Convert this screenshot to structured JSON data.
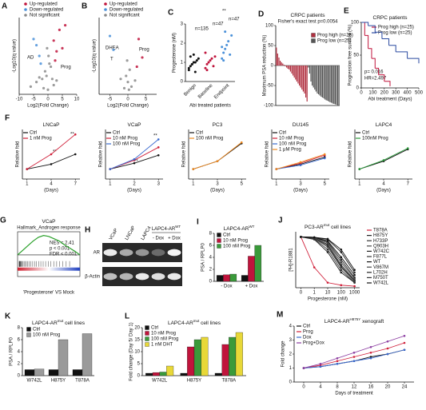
{
  "chart_data": [
    {
      "letter": "A",
      "type": "scatter",
      "ylabel": "-Log10(q value)",
      "xlabel": "Log2(Fold Change)",
      "xlim": [
        -10,
        10
      ],
      "xticks": [
        -10,
        -5,
        0,
        5,
        10
      ],
      "ylim": [
        0,
        5
      ],
      "series": [
        {
          "name": "Up-regulated",
          "color": "#c0143c",
          "x": [
            2,
            3,
            4,
            5,
            6,
            2.5
          ],
          "values": [
            3.5,
            2.8,
            4.2,
            3.0,
            4.5,
            2.2
          ]
        },
        {
          "name": "Down-regulated",
          "color": "#4a90d9",
          "x": [
            -3,
            -4,
            -2.5,
            -5
          ],
          "values": [
            2.5,
            3.2,
            2.0,
            3.6
          ]
        },
        {
          "name": "Not significant",
          "color": "#8a8a8a",
          "x": [
            -6,
            -4,
            -2,
            -1,
            -0.5,
            0,
            0.5,
            1,
            1.5,
            2,
            -1.5,
            0.2,
            -0.3,
            3,
            -3
          ],
          "values": [
            0.5,
            0.8,
            1,
            1.5,
            1.2,
            0.3,
            2,
            1.8,
            1,
            0.6,
            0.4,
            2.5,
            3,
            0.9,
            1.1
          ]
        }
      ],
      "annotations": [
        "AD",
        "Prog"
      ]
    },
    {
      "letter": "B",
      "type": "scatter",
      "ylabel": "-Log10(q value)",
      "xlabel": "Log2(Fold Change)",
      "xlim": [
        -8,
        8
      ],
      "xticks": [
        -5,
        0,
        5
      ],
      "ylim": [
        0,
        5
      ],
      "series": [
        {
          "name": "Up-regulated",
          "color": "#c0143c",
          "x": [
            3,
            4,
            2.5
          ],
          "values": [
            3.6,
            2.4,
            1.8
          ]
        },
        {
          "name": "Down-regulated",
          "color": "#4a90d9",
          "x": [
            -5,
            -4
          ],
          "values": [
            3.8,
            2.9
          ]
        },
        {
          "name": "Not significant",
          "color": "#8a8a8a",
          "x": [
            -1,
            -0.5,
            0,
            0.5,
            1,
            -2,
            2,
            -0.2,
            0.3
          ],
          "values": [
            0.4,
            1.2,
            0.8,
            1.6,
            0.5,
            1.0,
            0.9,
            2.2,
            0.3
          ]
        }
      ],
      "annotations": [
        "DHEA",
        "T",
        "Prog"
      ]
    },
    {
      "letter": "C",
      "type": "strip",
      "ylabel": "Progesterone (nM)",
      "xlabel": "Abi treated patients",
      "categories": [
        "Benign",
        "Baseline",
        "Endpoint"
      ],
      "colors": [
        "#111111",
        "#c0143c",
        "#4a90d9"
      ],
      "ylim": [
        0,
        3
      ],
      "yticks": [
        0,
        1,
        2,
        3
      ],
      "groups": [
        [
          0.6,
          0.8,
          0.9,
          1.0,
          1.0,
          1.1,
          1.2,
          0.7,
          1.3,
          0.9,
          1.4,
          0.5
        ],
        [
          0.7,
          0.9,
          1.0,
          1.1,
          1.2,
          0.8,
          1.3,
          1.5,
          0.6
        ],
        [
          1.2,
          1.5,
          1.7,
          1.9,
          2.1,
          1.4,
          2.4,
          1.8,
          1.1,
          2.6
        ]
      ],
      "annotations": [
        "n=135",
        "n=47",
        "n=47",
        "**"
      ]
    },
    {
      "letter": "D",
      "type": "bar",
      "title": "CRPC patients",
      "subtitle": "Fisher's exact test p=0.0054",
      "ylabel": "Maximum PSA reduction (%)",
      "ylim": [
        -100,
        100
      ],
      "yticks": [
        100,
        50,
        0,
        -50,
        -100
      ],
      "series": [
        {
          "name": "Prog high (n=25)",
          "color": "#b03040",
          "values": [
            45,
            30,
            20,
            12,
            8,
            5,
            2,
            -2,
            -5,
            -8,
            -10,
            -15,
            -20,
            -25,
            -30,
            -35,
            -40,
            -45,
            -50,
            -55,
            -60,
            -65,
            -70,
            -80,
            -90
          ]
        },
        {
          "name": "Prog low (n=25)",
          "color": "#555555",
          "values": [
            -5,
            -20,
            -40,
            -50,
            -55,
            -60,
            -65,
            -70,
            -72,
            -75,
            -78,
            -80,
            -82,
            -85,
            -87,
            -88,
            -90,
            -92,
            -93,
            -95,
            -96,
            -97,
            -98,
            -99,
            -100
          ]
        }
      ]
    },
    {
      "letter": "E",
      "type": "step",
      "title": "CRPC patients",
      "ylabel": "Progression free survival (%)",
      "xlabel": "Abi treatment (Days)",
      "xlim": [
        0,
        500
      ],
      "xticks": [
        0,
        100,
        200,
        300,
        400,
        500
      ],
      "ylim": [
        0,
        100
      ],
      "yticks": [
        0,
        50,
        100
      ],
      "series": [
        {
          "name": "Prog high (n=25)",
          "color": "#c0143c",
          "x": [
            0,
            30,
            60,
            90,
            120,
            150,
            200,
            250
          ],
          "values": [
            100,
            80,
            60,
            45,
            30,
            20,
            10,
            5
          ]
        },
        {
          "name": "Prog low (n=25)",
          "color": "#2a4aa0",
          "x": [
            0,
            60,
            120,
            180,
            240,
            300,
            400,
            500
          ],
          "values": [
            100,
            95,
            85,
            75,
            65,
            55,
            45,
            40
          ]
        }
      ],
      "annotations": [
        "p= 0.016",
        "HR=2.497"
      ]
    },
    {
      "letter": "F",
      "type": "line",
      "title": "LNCaP",
      "ylabel": "Relative fold",
      "xlabel": "(Days)",
      "categories": [
        "1",
        "4",
        "7"
      ],
      "ylim": [
        0,
        5
      ],
      "series": [
        {
          "name": "Ctrl",
          "color": "#111111",
          "values": [
            1,
            1.5,
            2.5
          ]
        },
        {
          "name": "1 nM Prog",
          "color": "#d0203a",
          "values": [
            1,
            2.5,
            4.5
          ]
        }
      ],
      "annotations": [
        "**",
        "**"
      ]
    },
    {
      "type": "line",
      "title": "VCaP",
      "ylabel": "Relative fold",
      "xlabel": "(Days)",
      "categories": [
        "1",
        "2",
        "3"
      ],
      "ylim": [
        0,
        5
      ],
      "series": [
        {
          "name": "Ctrl",
          "color": "#111111",
          "values": [
            1,
            1.6,
            2.4
          ]
        },
        {
          "name": "10 nM Prog",
          "color": "#d0203a",
          "values": [
            1,
            1.9,
            3.2
          ]
        },
        {
          "name": "100 nM Prog",
          "color": "#3a6ad0",
          "values": [
            1,
            2.0,
            4.0
          ]
        }
      ],
      "annotations": [
        "**",
        "**"
      ]
    },
    {
      "type": "line",
      "title": "PC3",
      "ylabel": "Relative fold",
      "xlabel": "(Days)",
      "categories": [
        "1",
        "3",
        "5"
      ],
      "ylim": [
        0,
        5
      ],
      "series": [
        {
          "name": "Ctrl",
          "color": "#111111",
          "values": [
            1,
            1.8,
            3.6
          ]
        },
        {
          "name": "100 nM Prog",
          "color": "#f08a20",
          "values": [
            1,
            1.8,
            3.7
          ]
        }
      ]
    },
    {
      "type": "line",
      "title": "DU145",
      "ylabel": "Relative fold",
      "xlabel": "(Days)",
      "categories": [
        "1",
        "3",
        "5"
      ],
      "ylim": [
        0,
        5
      ],
      "series": [
        {
          "name": "Ctrl",
          "color": "#111111",
          "values": [
            1,
            1.5,
            2.2
          ]
        },
        {
          "name": "10 nM Prog",
          "color": "#d0203a",
          "values": [
            1,
            1.6,
            2.4
          ]
        },
        {
          "name": "100 nM Prog",
          "color": "#3a6ad0",
          "values": [
            1,
            1.4,
            2.1
          ]
        },
        {
          "name": "1 μM Prog",
          "color": "#f08a20",
          "values": [
            1,
            1.7,
            2.5
          ]
        }
      ]
    },
    {
      "type": "line",
      "title": "LAPC4",
      "ylabel": "Relative fold",
      "xlabel": "(Days)",
      "categories": [
        "1",
        "4",
        "7"
      ],
      "ylim": [
        0,
        5
      ],
      "series": [
        {
          "name": "Ctrl",
          "color": "#111111",
          "values": [
            1,
            1.8,
            3.0
          ]
        },
        {
          "name": "100nM Prog",
          "color": "#2a9a3a",
          "values": [
            1,
            1.9,
            3.1
          ]
        }
      ]
    },
    {
      "letter": "G",
      "type": "gsea",
      "title": "VCaP",
      "subtitle": "Hallmark_Androgen response",
      "xlabel": "'Progesterone' VS Mock",
      "ylim": [
        -0.1,
        0.5
      ],
      "values": [
        0,
        0.1,
        0.2,
        0.3,
        0.38,
        0.42,
        0.4,
        0.35,
        0.3,
        0.22,
        0.15,
        0.08,
        0
      ],
      "annotations": [
        "NES = 2.41",
        "p < 0.001",
        "FDR < 0.001"
      ]
    },
    {
      "letter": "H",
      "type": "blot",
      "lanes": [
        "VCaP",
        "LNCaP",
        "LAPC4",
        "- Dox",
        "+ Dox"
      ],
      "group": "LAPC4-AR",
      "group_sup": "WT",
      "bands": [
        "AR",
        "β-Actin"
      ]
    },
    {
      "letter": "I",
      "type": "groupbar",
      "title": "LAPC4-AR",
      "title_sup": "WT",
      "ylabel": "PSA / RPLP0",
      "categories": [
        "- Dox",
        "+ Dox"
      ],
      "ylim": [
        0,
        8
      ],
      "yticks": [
        0,
        2,
        4,
        6,
        8
      ],
      "series": [
        {
          "name": "Ctrl",
          "color": "#111111",
          "values": [
            1,
            1
          ]
        },
        {
          "name": "10 nM Prog",
          "color": "#c0143c",
          "values": [
            1.1,
            4.2
          ]
        },
        {
          "name": "100 nM Prog",
          "color": "#3a9a3a",
          "values": [
            1.2,
            6.0
          ]
        }
      ]
    },
    {
      "letter": "J",
      "type": "line",
      "title": "PC3-AR",
      "title_sup": "mut",
      "title_end": " cell lines",
      "ylabel": "[³H]-R1881",
      "xlabel": "Progesterone (nM)",
      "categories": [
        "0",
        "1",
        "10",
        "100",
        "1000"
      ],
      "ylim": [
        0,
        110
      ],
      "series": [
        {
          "name": "T878A",
          "color": "#d0203a",
          "values": [
            100,
            40,
            10,
            5,
            3
          ]
        },
        {
          "name": "H875Y",
          "color": "#222222",
          "values": [
            100,
            95,
            70,
            30,
            10
          ]
        },
        {
          "name": "H733P",
          "color": "#333333",
          "values": [
            100,
            98,
            85,
            45,
            15
          ]
        },
        {
          "name": "Q903H",
          "color": "#444444",
          "values": [
            100,
            97,
            80,
            40,
            12
          ]
        },
        {
          "name": "W742C",
          "color": "#222222",
          "values": [
            100,
            99,
            90,
            55,
            20
          ]
        },
        {
          "name": "F877L",
          "color": "#333333",
          "values": [
            100,
            96,
            75,
            35,
            10
          ]
        },
        {
          "name": "WT",
          "color": "#111111",
          "values": [
            100,
            99,
            92,
            60,
            25
          ]
        },
        {
          "name": "V867M",
          "color": "#444444",
          "values": [
            100,
            98,
            88,
            50,
            18
          ]
        },
        {
          "name": "L702H",
          "color": "#222222",
          "values": [
            100,
            99,
            95,
            70,
            30
          ]
        },
        {
          "name": "M750T",
          "color": "#333333",
          "values": [
            100,
            97,
            83,
            42,
            14
          ]
        },
        {
          "name": "W742L",
          "color": "#111111",
          "values": [
            100,
            99,
            96,
            75,
            35
          ]
        }
      ]
    },
    {
      "letter": "K",
      "type": "groupbar",
      "title": "LAPC4-AR",
      "title_sup": "mut",
      "title_end": " cell lines",
      "ylabel": "PSA / RPLP0",
      "categories": [
        "W742L",
        "H875Y",
        "T878A"
      ],
      "ylim": [
        0,
        8
      ],
      "yticks": [
        0,
        2,
        4,
        6,
        8
      ],
      "series": [
        {
          "name": "Ctrl",
          "color": "#111111",
          "values": [
            1,
            1,
            1
          ]
        },
        {
          "name": "100 nM Prog",
          "color": "#9a9a9a",
          "values": [
            1.1,
            6.0,
            7.0
          ]
        }
      ]
    },
    {
      "letter": "L",
      "type": "groupbar",
      "title": "LAPC4-AR",
      "title_sup": "mut",
      "title_end": " cell lines",
      "ylabel": "Fold change (Day 5/ Day 1)",
      "categories": [
        "W742L",
        "H875Y",
        "T878A"
      ],
      "ylim": [
        0,
        20
      ],
      "yticks": [
        0,
        5,
        10,
        15,
        20
      ],
      "series": [
        {
          "name": "Ctrl",
          "color": "#111111",
          "values": [
            1,
            1,
            1
          ]
        },
        {
          "name": "10 nM Prog",
          "color": "#c0143c",
          "values": [
            1.3,
            12,
            13
          ]
        },
        {
          "name": "100 nM Prog",
          "color": "#3a9a3a",
          "values": [
            1.5,
            15,
            16
          ]
        },
        {
          "name": "1 nM DHT",
          "color": "#e8d838",
          "values": [
            4,
            16,
            18
          ]
        }
      ]
    },
    {
      "letter": "M",
      "type": "line",
      "title": "LAPC4-AR",
      "title_sup": "H875Y",
      "title_end": " xenograft",
      "ylabel": "Fold change",
      "xlabel": "Days of treatment",
      "categories": [
        "0",
        "4",
        "8",
        "12",
        "16",
        "20",
        "24"
      ],
      "ylim": [
        0,
        4
      ],
      "yticks": [
        0,
        1,
        2,
        3,
        4
      ],
      "series": [
        {
          "name": "Ctrl",
          "color": "#111111",
          "values": [
            1,
            1.1,
            1.3,
            1.5,
            1.8,
            2.0,
            2.3
          ]
        },
        {
          "name": "Prog",
          "color": "#d0203a",
          "values": [
            1,
            1.2,
            1.5,
            1.8,
            2.1,
            2.4,
            2.8
          ]
        },
        {
          "name": "Dox",
          "color": "#3a6ad0",
          "values": [
            1,
            1.1,
            1.3,
            1.5,
            1.7,
            2.0,
            2.3
          ]
        },
        {
          "name": "Prog+Dox",
          "color": "#8a3aa0",
          "values": [
            1,
            1.3,
            1.7,
            2.1,
            2.5,
            2.9,
            3.3
          ]
        }
      ]
    }
  ]
}
